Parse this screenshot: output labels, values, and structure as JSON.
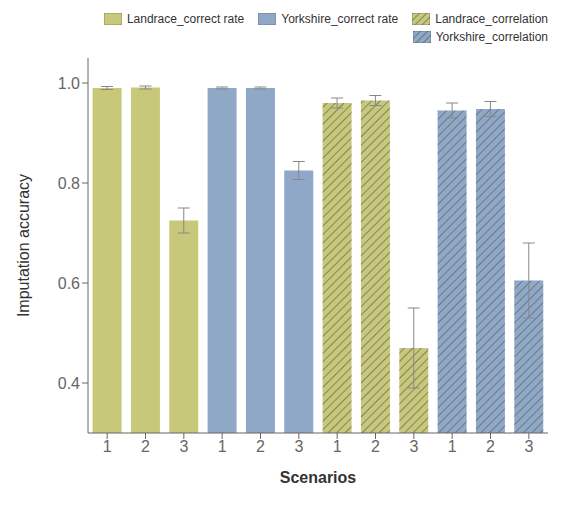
{
  "chart_data": {
    "type": "bar",
    "xlabel": "Scenarios",
    "ylabel": "Imputation accuracy",
    "categories": [
      "1",
      "2",
      "3",
      "1",
      "2",
      "3",
      "1",
      "2",
      "3",
      "1",
      "2",
      "3"
    ],
    "series": [
      {
        "name": "Landrace_correct rate",
        "color": "#c8c87a",
        "values": [
          0.99,
          0.991,
          0.725,
          null,
          null,
          null,
          null,
          null,
          null,
          null,
          null,
          null
        ],
        "errors": [
          0.003,
          0.003,
          0.025,
          null,
          null,
          null,
          null,
          null,
          null,
          null,
          null,
          null
        ]
      },
      {
        "name": "Yorkshire_correct rate",
        "color": "#8fa8c8",
        "values": [
          null,
          null,
          null,
          0.99,
          0.99,
          0.825,
          null,
          null,
          null,
          null,
          null,
          null
        ],
        "errors": [
          null,
          null,
          null,
          0.002,
          0.002,
          0.018,
          null,
          null,
          null,
          null,
          null,
          null
        ]
      },
      {
        "name": "Landrace_correlation",
        "color": "#c8c87a",
        "values": [
          null,
          null,
          null,
          null,
          null,
          null,
          0.96,
          0.965,
          0.47,
          null,
          null,
          null
        ],
        "errors": [
          null,
          null,
          null,
          null,
          null,
          null,
          0.01,
          0.01,
          0.08,
          null,
          null,
          null
        ]
      },
      {
        "name": "Yorkshire_correlation",
        "color": "#8fa8c8",
        "values": [
          null,
          null,
          null,
          null,
          null,
          null,
          null,
          null,
          null,
          0.945,
          0.948,
          0.605
        ],
        "errors": [
          null,
          null,
          null,
          null,
          null,
          null,
          null,
          null,
          null,
          0.015,
          0.015,
          0.075
        ]
      }
    ],
    "ylim": [
      0.3,
      1.05
    ],
    "yticks": [
      0.4,
      0.6,
      0.8,
      {
        "value": 1.0,
        "label": "1.0"
      }
    ],
    "grid": false,
    "legend": "upper right"
  }
}
